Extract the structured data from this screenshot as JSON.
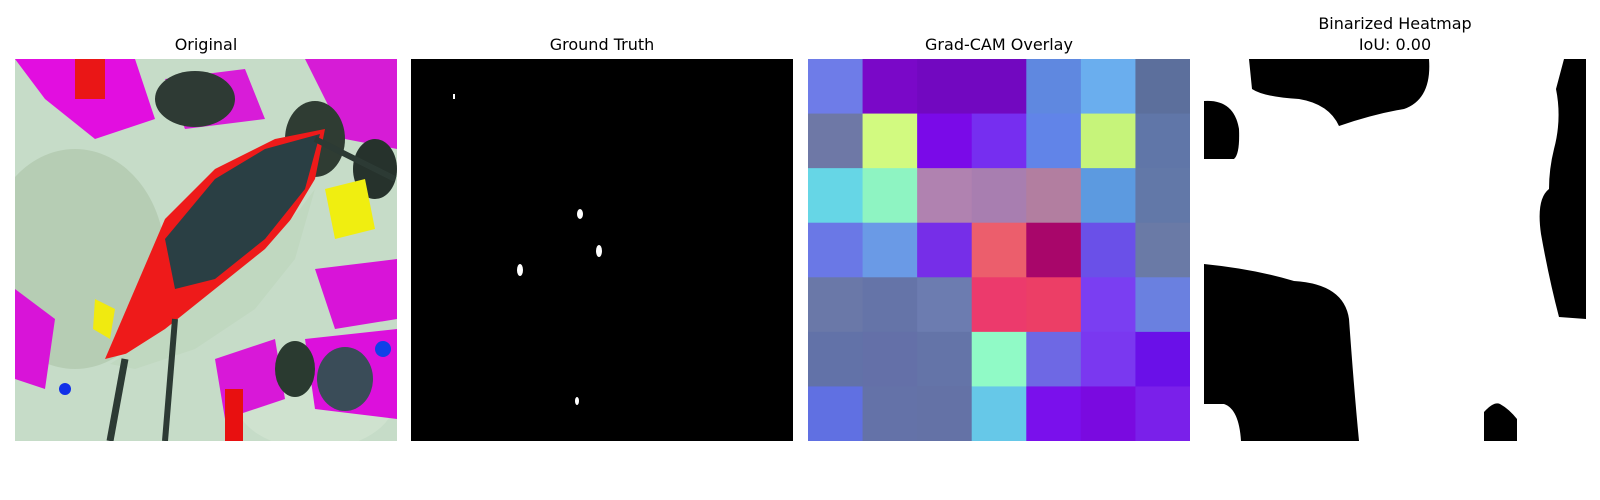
{
  "panels": [
    {
      "title": "Original"
    },
    {
      "title": "Ground Truth"
    },
    {
      "title": "Grad-CAM Overlay"
    },
    {
      "title": "Binarized Heatmap",
      "subtitle": "IoU: 0.00"
    }
  ],
  "gradcam_grid": [
    [
      "#6e7ce8",
      "#7a08c8",
      "#7208c0",
      "#7208c0",
      "#5f88e0",
      "#6aaeee",
      "#5c6f9c"
    ],
    [
      "#6e78a6",
      "#d2fa80",
      "#7a0ae8",
      "#762ef0",
      "#6184e8",
      "#c6f47a",
      "#6076a8"
    ],
    [
      "#66d6e6",
      "#8ef4c2",
      "#b082b0",
      "#a87eb0",
      "#b27ea0",
      "#5c9ae0",
      "#6278a8"
    ],
    [
      "#6a78e6",
      "#6a9ae6",
      "#762ee8",
      "#ec5e6c",
      "#a8066a",
      "#6a50e8",
      "#6a7aa6"
    ],
    [
      "#6a78a8",
      "#6574a8",
      "#6c7cb0",
      "#ec3a6c",
      "#ec3e66",
      "#7a3ef2",
      "#6a80e0"
    ],
    [
      "#6272a8",
      "#6470a8",
      "#6474a8",
      "#90fac6",
      "#6e68e4",
      "#7a38f0",
      "#6a10e8"
    ],
    [
      "#6070e2",
      "#6472a8",
      "#6472a6",
      "#66c8e8",
      "#7a10ec",
      "#7a0ae0",
      "#7a20ea"
    ]
  ]
}
